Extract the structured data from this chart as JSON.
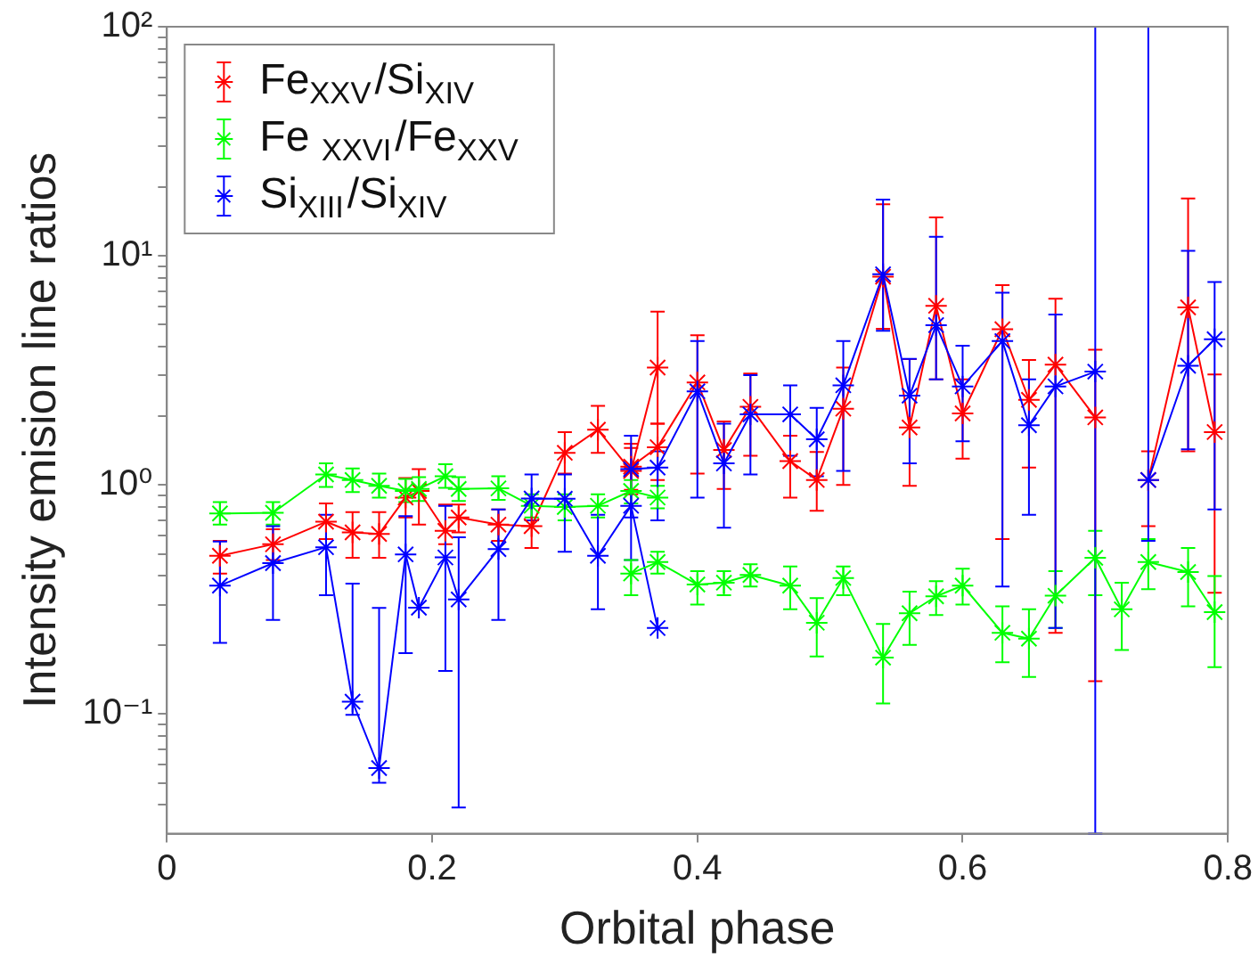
{
  "chart_data": {
    "type": "line",
    "xlabel": "Orbital phase",
    "ylabel": "Intensity emision line ratios",
    "xlim": [
      0,
      0.8
    ],
    "xticks": [
      0,
      0.2,
      0.4,
      0.6,
      0.8
    ],
    "ylim": [
      0.03,
      100
    ],
    "log": "y",
    "yticks": [
      {
        "value": 0.04,
        "label": null
      },
      {
        "value": 0.05,
        "label": null
      },
      {
        "value": 0.06,
        "label": null
      },
      {
        "value": 0.07,
        "label": null
      },
      {
        "value": 0.08,
        "label": null
      },
      {
        "value": 0.09,
        "label": null
      },
      {
        "value": 0.1,
        "label": "10⁻¹"
      },
      {
        "value": 0.2,
        "label": null
      },
      {
        "value": 0.3,
        "label": null
      },
      {
        "value": 0.4,
        "label": null
      },
      {
        "value": 0.5,
        "label": null
      },
      {
        "value": 0.6,
        "label": null
      },
      {
        "value": 0.7,
        "label": null
      },
      {
        "value": 0.8,
        "label": null
      },
      {
        "value": 0.9,
        "label": null
      },
      {
        "value": 1,
        "label": "10⁰"
      },
      {
        "value": 2,
        "label": null
      },
      {
        "value": 3,
        "label": null
      },
      {
        "value": 4,
        "label": null
      },
      {
        "value": 5,
        "label": null
      },
      {
        "value": 6,
        "label": null
      },
      {
        "value": 7,
        "label": null
      },
      {
        "value": 8,
        "label": null
      },
      {
        "value": 9,
        "label": null
      },
      {
        "value": 10,
        "label": "10¹"
      },
      {
        "value": 20,
        "label": null
      },
      {
        "value": 30,
        "label": null
      },
      {
        "value": 40,
        "label": null
      },
      {
        "value": 50,
        "label": null
      },
      {
        "value": 60,
        "label": null
      },
      {
        "value": 70,
        "label": null
      },
      {
        "value": 80,
        "label": null
      },
      {
        "value": 90,
        "label": null
      },
      {
        "value": 100,
        "label": "10²"
      }
    ],
    "grid": false,
    "legend": "top left",
    "marker": "cross",
    "line_style": "solid",
    "series": [
      {
        "name": "Fe$_{XXV}$/Si$_{XIV}$",
        "color": "#ff0000",
        "x": [
          0.04,
          0.08,
          0.12,
          0.14,
          0.16,
          0.18,
          0.19,
          0.21,
          0.22,
          0.25,
          0.275,
          0.3,
          0.325,
          0.35,
          0.37
        ],
        "values": [
          0.49,
          0.55,
          0.69,
          0.62,
          0.61,
          0.88,
          0.94,
          0.63,
          0.72,
          0.67,
          0.66,
          1.38,
          1.74,
          1.15,
          3.25
        ],
        "errors": [
          [
            0.41,
            0.57
          ],
          [
            0.47,
            0.64
          ],
          [
            0.58,
            0.83
          ],
          [
            0.48,
            0.76
          ],
          [
            0.48,
            0.76
          ],
          [
            0.72,
            1.07
          ],
          [
            0.67,
            1.17
          ],
          [
            0.55,
            0.82
          ],
          [
            0.62,
            0.82
          ],
          [
            0.57,
            0.78
          ],
          [
            0.53,
            0.7
          ],
          [
            1.12,
            1.7
          ],
          [
            1.38,
            2.21
          ],
          [
            0.91,
            1.51
          ],
          [
            1.85,
            5.7
          ]
        ]
      },
      {
        "name": "Fe $_{XXVI}$/Fe$_{XXV}$",
        "color": "#00ff00",
        "x": [
          0.04,
          0.08,
          0.12,
          0.14,
          0.16,
          0.18,
          0.19,
          0.21,
          0.22,
          0.25,
          0.275,
          0.3,
          0.325,
          0.35,
          0.37
        ],
        "values": [
          0.75,
          0.755,
          1.11,
          1.05,
          0.99,
          0.94,
          0.96,
          1.09,
          0.96,
          0.965,
          0.81,
          0.8,
          0.81,
          0.94,
          0.88
        ],
        "errors": [
          [
            0.67,
            0.84
          ],
          [
            0.67,
            0.84
          ],
          [
            0.98,
            1.24
          ],
          [
            0.93,
            1.18
          ],
          [
            0.88,
            1.12
          ],
          [
            0.84,
            1.06
          ],
          [
            0.85,
            1.08
          ],
          [
            0.97,
            1.23
          ],
          [
            0.85,
            1.08
          ],
          [
            0.86,
            1.09
          ],
          [
            0.72,
            0.91
          ],
          [
            0.7,
            0.91
          ],
          [
            0.72,
            0.91
          ],
          [
            0.83,
            1.05
          ],
          [
            0.79,
            0.99
          ]
        ]
      },
      {
        "name": "Si$_{XIII}$/Si$_{XIV}$",
        "color": "#0000ff",
        "x": [
          0.04,
          0.08,
          0.12,
          0.14,
          0.16,
          0.18,
          0.19,
          0.21,
          0.22,
          0.25,
          0.275,
          0.3,
          0.325,
          0.35,
          0.37
        ],
        "values": [
          0.363,
          0.455,
          0.534,
          0.113,
          0.058,
          0.497,
          0.291,
          0.482,
          0.316,
          0.524,
          0.872,
          0.87,
          0.49,
          0.81,
          0.237
        ],
        "errors": [
          [
            0.204,
            0.566
          ],
          [
            0.257,
            0.66
          ],
          [
            0.33,
            0.74
          ],
          [
            0.099,
            0.37
          ],
          [
            0.05,
            0.29
          ],
          [
            0.184,
            0.73
          ],
          null,
          [
            0.154,
            0.81
          ],
          [
            0.039,
            0.59
          ],
          [
            0.257,
            0.78
          ],
          [
            0.7,
            1.11
          ],
          [
            0.51,
            1.11
          ],
          [
            0.286,
            0.74
          ],
          [
            0.47,
            1.19
          ],
          null
        ]
      },
      {
        "color": "#ff0000",
        "x": [
          0.35,
          0.37,
          0.4,
          0.42,
          0.44,
          0.47,
          0.49,
          0.51,
          0.54,
          0.56,
          0.58,
          0.6,
          0.63,
          0.65,
          0.67,
          0.7,
          0.72,
          0.74,
          0.77,
          0.79
        ],
        "values": [
          1.2,
          1.46,
          2.8,
          1.42,
          2.19,
          1.27,
          1.05,
          2.15,
          8.1,
          1.78,
          6.05,
          2.05,
          4.78,
          2.35,
          3.35,
          1.97,
          null,
          1.05,
          5.95,
          1.7
        ],
        "errors": [
          [
            0.95,
            1.45
          ],
          [
            1.05,
            1.85
          ],
          [
            1.12,
            4.5
          ],
          [
            0.96,
            1.89
          ],
          [
            1.34,
            3.06
          ],
          [
            0.88,
            1.64
          ],
          [
            0.77,
            1.39
          ],
          [
            1,
            3.25
          ],
          [
            4.8,
            16.8
          ],
          [
            0.99,
            3.54
          ],
          [
            2.89,
            14.7
          ],
          [
            1.3,
            2.89
          ],
          [
            0.58,
            7.45
          ],
          [
            1.19,
            3.51
          ],
          [
            0.226,
            6.5
          ],
          [
            0.139,
            3.89
          ],
          null,
          [
            0.66,
            1.4
          ],
          [
            1.4,
            17.8
          ],
          [
            0.338,
            3.03
          ]
        ]
      },
      {
        "color": "#00ff00",
        "x": [
          0.35,
          0.37,
          0.4,
          0.42,
          0.44,
          0.47,
          0.49,
          0.51,
          0.54,
          0.56,
          0.58,
          0.6,
          0.63,
          0.65,
          0.67,
          0.7,
          0.72,
          0.74,
          0.77,
          0.79
        ],
        "values": [
          0.41,
          0.46,
          0.367,
          0.374,
          0.404,
          0.363,
          0.25,
          0.392,
          0.176,
          0.275,
          0.326,
          0.363,
          0.226,
          0.213,
          0.328,
          0.48,
          0.286,
          0.46,
          0.416,
          0.278
        ],
        "errors": [
          [
            0.33,
            0.47
          ],
          [
            0.41,
            0.51
          ],
          [
            0.3,
            0.42
          ],
          [
            0.33,
            0.42
          ],
          [
            0.36,
            0.45
          ],
          [
            0.286,
            0.44
          ],
          [
            0.178,
            0.32
          ],
          [
            0.33,
            0.44
          ],
          [
            0.111,
            0.247
          ],
          [
            0.2,
            0.342
          ],
          [
            0.27,
            0.38
          ],
          [
            0.3,
            0.43
          ],
          [
            0.168,
            0.295
          ],
          [
            0.145,
            0.286
          ],
          [
            0.237,
            0.42
          ],
          [
            0.33,
            0.63
          ],
          [
            0.19,
            0.374
          ],
          [
            0.35,
            0.58
          ],
          [
            0.295,
            0.53
          ],
          [
            0.16,
            0.4
          ]
        ]
      },
      {
        "color": "#0000ff",
        "x": [
          0.35,
          0.37,
          0.4,
          0.42,
          0.44,
          0.47,
          0.49,
          0.51,
          0.54,
          0.56,
          0.58,
          0.6,
          0.63,
          0.65,
          0.67,
          0.7,
          0.72,
          0.74,
          0.77,
          0.79
        ],
        "values": [
          1.17,
          1.19,
          2.56,
          1.24,
          2.03,
          2.03,
          1.58,
          2.72,
          8.3,
          2.45,
          4.98,
          2.69,
          4.24,
          1.82,
          2.69,
          3.12,
          null,
          1.05,
          3.31,
          4.32
        ],
        "errors": [
          [
            0.72,
            1.64
          ],
          [
            0.7,
            1.4
          ],
          [
            0.88,
            4.24
          ],
          [
            0.65,
            1.85
          ],
          [
            1.11,
            3.01
          ],
          [
            1.34,
            2.72
          ],
          [
            1.09,
            2.17
          ],
          [
            1.15,
            4.24
          ],
          [
            4.7,
            17.6
          ],
          [
            1.24,
            3.55
          ],
          [
            2.89,
            12.1
          ],
          [
            1.55,
            4.05
          ],
          [
            0.36,
            6.9
          ],
          [
            0.74,
            2.89
          ],
          [
            0.237,
            5.54
          ],
          [
            0.03,
            100
          ],
          null,
          [
            0.57,
            100
          ],
          [
            1.43,
            10.5
          ],
          [
            0.78,
            7.68
          ]
        ]
      }
    ]
  }
}
